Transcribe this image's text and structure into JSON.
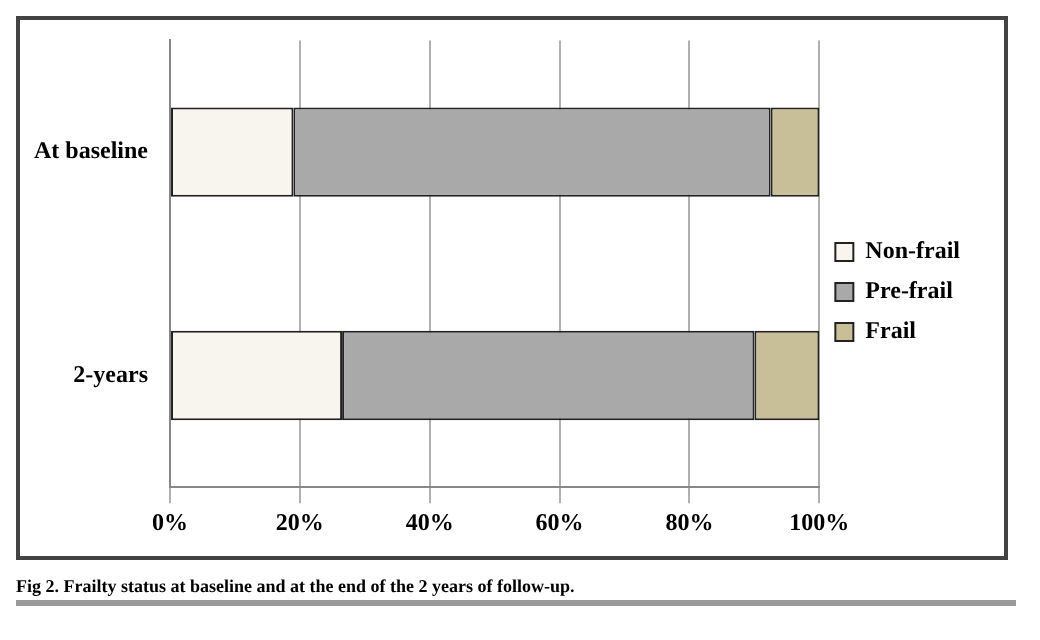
{
  "chart_data": {
    "type": "bar",
    "orientation": "horizontal",
    "stacked": true,
    "categories": [
      "At baseline",
      "2-years"
    ],
    "series": [
      {
        "name": "Non-frail",
        "color": "#f7f5ee",
        "values": [
          19,
          26.5
        ]
      },
      {
        "name": "Pre-frail",
        "color": "#a9a9a9",
        "values": [
          73.5,
          63.5
        ]
      },
      {
        "name": "Frail",
        "color": "#c8bf98",
        "values": [
          7.5,
          10
        ]
      }
    ],
    "xlim": [
      0,
      100
    ],
    "xticks": [
      {
        "value": 0,
        "label": "0%"
      },
      {
        "value": 20,
        "label": "20%"
      },
      {
        "value": 40,
        "label": "40%"
      },
      {
        "value": 60,
        "label": "60%"
      },
      {
        "value": 80,
        "label": "80%"
      },
      {
        "value": 100,
        "label": "100%"
      }
    ],
    "grid": "x",
    "legend": "right",
    "annotations": [
      "Fig 2. Frailty status at baseline and at the end of the 2 years of follow-up."
    ]
  }
}
